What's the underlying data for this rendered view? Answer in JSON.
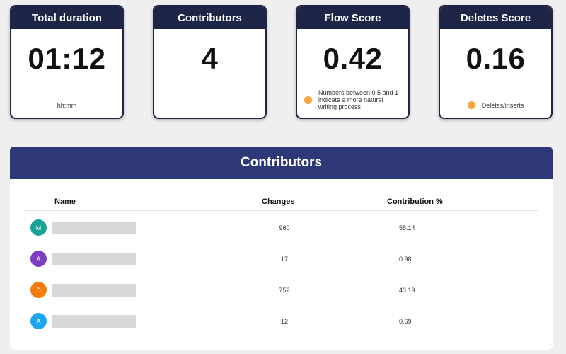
{
  "stats": [
    {
      "title": "Total duration",
      "value": "01:12",
      "footer": "hh:mm",
      "dot": false
    },
    {
      "title": "Contributors",
      "value": "4",
      "footer": "",
      "dot": false
    },
    {
      "title": "Flow Score",
      "value": "0.42",
      "footer": "Numbers between 0.5 and 1 indicate a more natural writing process",
      "dot": true
    },
    {
      "title": "Deletes Score",
      "value": "0.16",
      "footer": "Deletes/inserts",
      "dot": true
    }
  ],
  "contributors": {
    "title": "Contributors",
    "columns": {
      "name": "Name",
      "changes": "Changes",
      "contribution": "Contribution %"
    },
    "rows": [
      {
        "initial": "M",
        "color": "#17a398",
        "changes": "960",
        "contribution": "55.14"
      },
      {
        "initial": "A",
        "color": "#7b3fc4",
        "changes": "17",
        "contribution": "0.98"
      },
      {
        "initial": "D",
        "color": "#f57c0c",
        "changes": "752",
        "contribution": "43.19"
      },
      {
        "initial": "A",
        "color": "#1aa6f0",
        "changes": "12",
        "contribution": "0.69"
      }
    ]
  },
  "colors": {
    "header_dark": "#1f2547",
    "panel_header": "#2e3777",
    "dot": "#f7a541"
  }
}
